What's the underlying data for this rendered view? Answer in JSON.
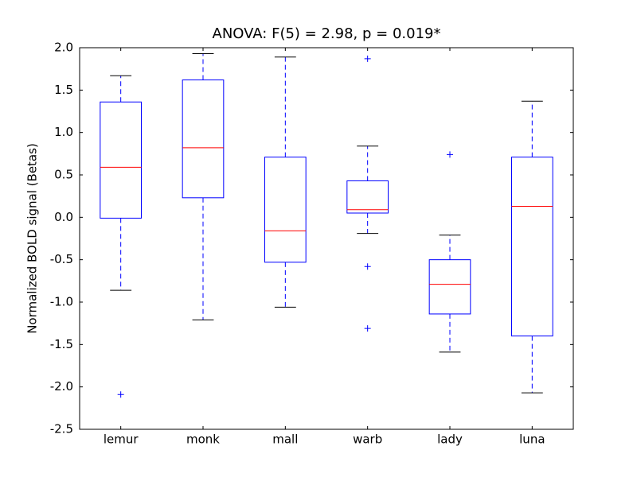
{
  "chart_data": {
    "type": "box",
    "title": "ANOVA: F(5) = 2.98, p = 0.019*",
    "y_label": "Normalized BOLD signal (Betas)",
    "categories": [
      "lemur",
      "monk",
      "mall",
      "warb",
      "lady",
      "luna"
    ],
    "boxes": [
      {
        "whisker_low": -0.86,
        "q1": -0.01,
        "median": 0.59,
        "q3": 1.36,
        "whisker_high": 1.67,
        "outliers": [
          -2.09
        ]
      },
      {
        "whisker_low": -1.21,
        "q1": 0.23,
        "median": 0.82,
        "q3": 1.62,
        "whisker_high": 1.93,
        "outliers": []
      },
      {
        "whisker_low": -1.06,
        "q1": -0.53,
        "median": -0.16,
        "q3": 0.71,
        "whisker_high": 1.89,
        "outliers": []
      },
      {
        "whisker_low": -0.19,
        "q1": 0.05,
        "median": 0.09,
        "q3": 0.43,
        "whisker_high": 0.84,
        "outliers": [
          1.87,
          -0.58,
          -1.31
        ]
      },
      {
        "whisker_low": -1.59,
        "q1": -1.14,
        "median": -0.79,
        "q3": -0.5,
        "whisker_high": -0.21,
        "outliers": [
          0.74
        ]
      },
      {
        "whisker_low": -2.07,
        "q1": -1.4,
        "median": 0.13,
        "q3": 0.71,
        "whisker_high": 1.37,
        "outliers": []
      }
    ],
    "box_color": "#0000ff",
    "median_color": "#ff0000",
    "cap_color": "#000000",
    "ylim": [
      -2.5,
      2.0
    ],
    "yticks": [
      {
        "value": -2.5,
        "label": "-2.5"
      },
      {
        "value": -2.0,
        "label": "-2.0"
      },
      {
        "value": -1.5,
        "label": "-1.5"
      },
      {
        "value": -1.0,
        "label": "-1.0"
      },
      {
        "value": -0.5,
        "label": "-0.5"
      },
      {
        "value": 0.0,
        "label": "0.0"
      },
      {
        "value": 0.5,
        "label": "0.5"
      },
      {
        "value": 1.0,
        "label": "1.0"
      },
      {
        "value": 1.5,
        "label": "1.5"
      },
      {
        "value": 2.0,
        "label": "2.0"
      }
    ],
    "grid": false
  }
}
